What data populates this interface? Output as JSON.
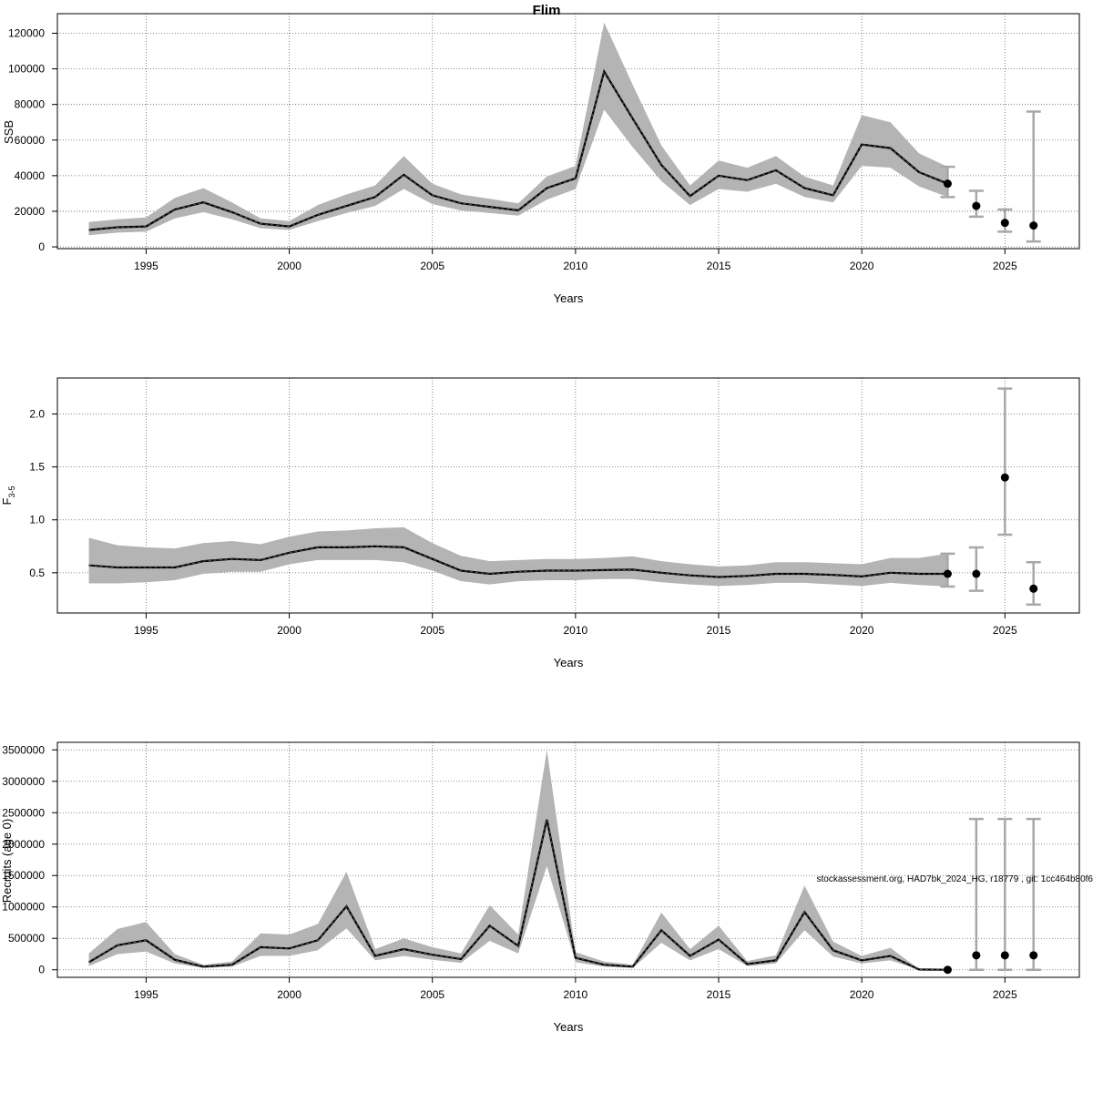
{
  "figure": {
    "title": "Flim",
    "annotation": "stockassessment.org, HAD7bk_2024_HG, r18779 , git: 1cc464b80f6"
  },
  "chart_data": [
    {
      "type": "line",
      "title": "Flim",
      "xlabel": "Years",
      "ylabel": "SSB",
      "xlim": [
        1991.9,
        2027.6
      ],
      "ylim": [
        -1000,
        131000
      ],
      "xticks": [
        1995,
        2000,
        2005,
        2010,
        2015,
        2020,
        2025
      ],
      "yticks": [
        0,
        20000,
        40000,
        60000,
        80000,
        100000,
        120000
      ],
      "ytick_labels": [
        "0",
        "20000",
        "40000",
        "60000",
        "80000",
        "100000",
        "120000"
      ],
      "grid": true,
      "series": [
        {
          "x": [
            1993,
            1994,
            1995,
            1996,
            1997,
            1998,
            1999,
            2000,
            2001,
            2002,
            2003,
            2004,
            2005,
            2006,
            2007,
            2008,
            2009,
            2010,
            2011,
            2012,
            2013,
            2014,
            2015,
            2016,
            2017,
            2018,
            2019,
            2020,
            2021,
            2022,
            2023
          ],
          "values": [
            9500,
            11000,
            11500,
            21000,
            25000,
            19500,
            13000,
            11500,
            18000,
            23000,
            28000,
            40500,
            29000,
            24500,
            22500,
            20500,
            33000,
            38500,
            98500,
            72000,
            46000,
            28500,
            40000,
            37500,
            43000,
            33000,
            29000,
            57500,
            55500,
            42000,
            35500
          ],
          "lower": [
            6500,
            8000,
            8500,
            16000,
            19500,
            15500,
            10500,
            9500,
            14500,
            19000,
            23000,
            32500,
            24000,
            20500,
            19000,
            17500,
            26500,
            32500,
            77000,
            56000,
            37000,
            23500,
            32500,
            31000,
            35500,
            28000,
            25000,
            45500,
            44500,
            34000,
            28000
          ],
          "upper": [
            14000,
            15500,
            16500,
            27500,
            33000,
            25000,
            16000,
            14500,
            23500,
            29500,
            34500,
            51000,
            35500,
            29500,
            27000,
            24500,
            39500,
            45500,
            126000,
            91000,
            57000,
            34500,
            48500,
            44500,
            51000,
            39500,
            34500,
            74000,
            70000,
            52500,
            45000
          ]
        }
      ],
      "forecast": {
        "x": [
          2023,
          2024,
          2025,
          2026
        ],
        "values": [
          35500,
          23000,
          13500,
          12000
        ],
        "lower": [
          28000,
          17000,
          8500,
          3000
        ],
        "upper": [
          45000,
          31500,
          21000,
          76000
        ]
      }
    },
    {
      "type": "line",
      "xlabel": "Years",
      "ylabel": "F",
      "ylabel_sub": "3-5",
      "xlim": [
        1991.9,
        2027.6
      ],
      "ylim": [
        0.12,
        2.34
      ],
      "xticks": [
        1995,
        2000,
        2005,
        2010,
        2015,
        2020,
        2025
      ],
      "yticks": [
        0.5,
        1.0,
        1.5,
        2.0
      ],
      "ytick_labels": [
        "0.5",
        "1.0",
        "1.5",
        "2.0"
      ],
      "grid": true,
      "series": [
        {
          "x": [
            1993,
            1994,
            1995,
            1996,
            1997,
            1998,
            1999,
            2000,
            2001,
            2002,
            2003,
            2004,
            2005,
            2006,
            2007,
            2008,
            2009,
            2010,
            2011,
            2012,
            2013,
            2014,
            2015,
            2016,
            2017,
            2018,
            2019,
            2020,
            2021,
            2022,
            2023
          ],
          "values": [
            0.57,
            0.55,
            0.55,
            0.55,
            0.61,
            0.63,
            0.62,
            0.69,
            0.74,
            0.74,
            0.75,
            0.74,
            0.63,
            0.52,
            0.49,
            0.51,
            0.52,
            0.52,
            0.525,
            0.53,
            0.5,
            0.475,
            0.46,
            0.47,
            0.49,
            0.49,
            0.48,
            0.465,
            0.5,
            0.49,
            0.49
          ],
          "lower": [
            0.4,
            0.4,
            0.41,
            0.43,
            0.49,
            0.51,
            0.51,
            0.58,
            0.62,
            0.62,
            0.62,
            0.6,
            0.52,
            0.42,
            0.39,
            0.42,
            0.43,
            0.43,
            0.44,
            0.44,
            0.41,
            0.39,
            0.375,
            0.385,
            0.405,
            0.405,
            0.39,
            0.375,
            0.405,
            0.385,
            0.37
          ],
          "upper": [
            0.83,
            0.76,
            0.74,
            0.73,
            0.78,
            0.8,
            0.77,
            0.84,
            0.89,
            0.9,
            0.92,
            0.93,
            0.78,
            0.66,
            0.61,
            0.62,
            0.63,
            0.63,
            0.64,
            0.655,
            0.61,
            0.58,
            0.56,
            0.57,
            0.6,
            0.6,
            0.59,
            0.58,
            0.64,
            0.64,
            0.68
          ]
        }
      ],
      "forecast": {
        "x": [
          2023,
          2024,
          2025,
          2026
        ],
        "values": [
          0.49,
          0.49,
          1.4,
          0.35
        ],
        "lower": [
          0.37,
          0.33,
          0.86,
          0.2
        ],
        "upper": [
          0.68,
          0.74,
          2.24,
          0.6
        ]
      }
    },
    {
      "type": "line",
      "xlabel": "Years",
      "ylabel": "Recruits (age 0)",
      "xlim": [
        1991.9,
        2027.6
      ],
      "ylim": [
        -120000,
        3620000
      ],
      "xticks": [
        1995,
        2000,
        2005,
        2010,
        2015,
        2020,
        2025
      ],
      "yticks": [
        0,
        500000,
        1000000,
        1500000,
        2000000,
        2500000,
        3000000,
        3500000
      ],
      "ytick_labels": [
        "0",
        "500000",
        "1000000",
        "1500000",
        "2000000",
        "2500000",
        "3000000",
        "3500000"
      ],
      "grid": true,
      "series": [
        {
          "x": [
            1993,
            1994,
            1995,
            1996,
            1997,
            1998,
            1999,
            2000,
            2001,
            2002,
            2003,
            2004,
            2005,
            2006,
            2007,
            2008,
            2009,
            2010,
            2011,
            2012,
            2013,
            2014,
            2015,
            2016,
            2017,
            2018,
            2019,
            2020,
            2021,
            2022,
            2023
          ],
          "values": [
            120000,
            390000,
            470000,
            160000,
            50000,
            80000,
            360000,
            340000,
            470000,
            1010000,
            220000,
            330000,
            240000,
            170000,
            700000,
            380000,
            2390000,
            190000,
            80000,
            50000,
            630000,
            220000,
            480000,
            90000,
            150000,
            920000,
            310000,
            150000,
            220000,
            5000,
            0
          ],
          "lower": [
            60000,
            250000,
            290000,
            100000,
            30000,
            50000,
            220000,
            220000,
            310000,
            660000,
            150000,
            220000,
            160000,
            110000,
            460000,
            260000,
            1650000,
            120000,
            50000,
            30000,
            430000,
            150000,
            330000,
            60000,
            100000,
            630000,
            210000,
            100000,
            150000,
            2000,
            0
          ],
          "upper": [
            260000,
            650000,
            760000,
            250000,
            80000,
            130000,
            580000,
            560000,
            730000,
            1560000,
            330000,
            500000,
            360000,
            260000,
            1030000,
            560000,
            3500000,
            280000,
            130000,
            80000,
            910000,
            330000,
            700000,
            140000,
            230000,
            1340000,
            450000,
            220000,
            350000,
            9000,
            0
          ]
        }
      ],
      "forecast": {
        "x": [
          2023,
          2024,
          2025,
          2026
        ],
        "values": [
          0,
          230000,
          230000,
          230000
        ],
        "lower": [
          0,
          0,
          0,
          0
        ],
        "upper": [
          0,
          2400000,
          2400000,
          2400000
        ]
      }
    }
  ]
}
